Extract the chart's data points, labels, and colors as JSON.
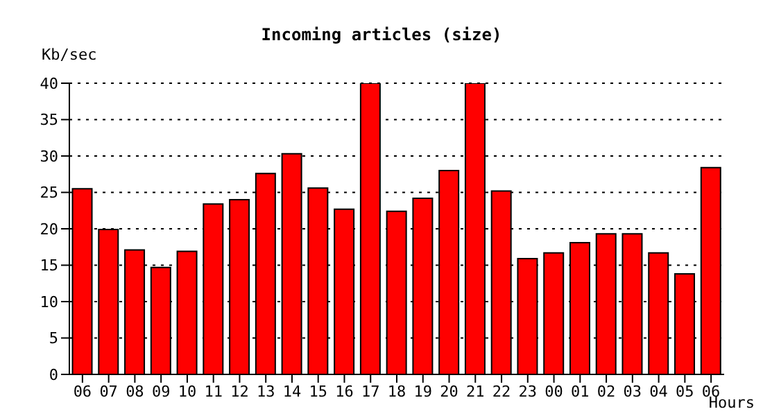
{
  "chart_data": {
    "type": "bar",
    "title": "Incoming articles (size)",
    "ylabel": "Kb/sec",
    "xlabel": "Hours",
    "categories": [
      "06",
      "07",
      "08",
      "09",
      "10",
      "11",
      "12",
      "13",
      "14",
      "15",
      "16",
      "17",
      "18",
      "19",
      "20",
      "21",
      "22",
      "23",
      "00",
      "01",
      "02",
      "03",
      "04",
      "05",
      "06"
    ],
    "values": [
      25.5,
      19.9,
      17.1,
      14.7,
      16.9,
      23.4,
      24.0,
      27.6,
      30.3,
      25.6,
      22.7,
      40,
      22.4,
      24.2,
      28.0,
      40,
      25.2,
      15.9,
      16.7,
      18.1,
      19.3,
      19.3,
      16.7,
      13.8,
      28.4
    ],
    "color": "#ff0000",
    "ylim": [
      0,
      40
    ],
    "yticks": [
      0,
      5,
      10,
      15,
      20,
      25,
      30,
      35,
      40
    ],
    "grid": "y"
  }
}
